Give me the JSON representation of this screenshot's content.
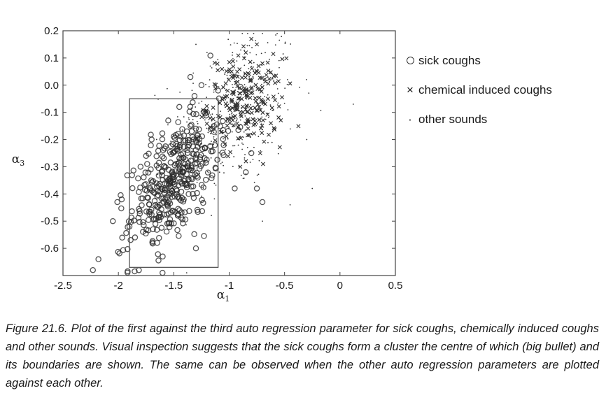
{
  "chart_data": {
    "type": "scatter",
    "xlabel": "α",
    "xlabel_sub": "1",
    "ylabel": "α",
    "ylabel_sub": "3",
    "xlim": [
      -2.5,
      0.5
    ],
    "ylim": [
      -0.7,
      0.2
    ],
    "x_ticks": [
      -2.5,
      -2,
      -1.5,
      -1,
      -0.5,
      0,
      0.5
    ],
    "x_tick_labels": [
      "-2.5",
      "-2",
      "-1.5",
      "-1",
      "-0.5",
      "0",
      "0.5"
    ],
    "y_ticks": [
      0.2,
      0.1,
      0.0,
      -0.1,
      -0.2,
      -0.3,
      -0.4,
      -0.5,
      -0.6
    ],
    "y_tick_labels": [
      "0.2",
      "0.1",
      "0.0",
      "-0.1",
      "-0.2",
      "-0.3",
      "-0.4",
      "-0.5",
      "-0.6"
    ],
    "grid": false,
    "legend_position": "right",
    "boundary_box": {
      "x0": -1.9,
      "x1": -1.1,
      "y0": -0.67,
      "y1": -0.05
    },
    "series": [
      {
        "name": "sick coughs",
        "marker": "circle",
        "approx_count": 420,
        "cluster": {
          "center": [
            -1.5,
            -0.35
          ],
          "spread": [
            0.2,
            0.1
          ]
        },
        "points": [
          [
            -2.23,
            -0.68
          ],
          [
            -2.18,
            -0.64
          ],
          [
            -2.05,
            -0.5
          ],
          [
            -1.97,
            -0.42
          ],
          [
            -1.9,
            -0.52
          ],
          [
            -1.85,
            -0.56
          ],
          [
            -1.8,
            -0.3
          ],
          [
            -1.75,
            -0.26
          ],
          [
            -1.7,
            -0.2
          ],
          [
            -1.65,
            -0.58
          ],
          [
            -1.6,
            -0.63
          ],
          [
            -1.55,
            -0.13
          ],
          [
            -1.45,
            -0.08
          ],
          [
            -1.35,
            0.03
          ],
          [
            -1.3,
            -0.6
          ],
          [
            -1.25,
            0.0
          ],
          [
            -1.2,
            -0.1
          ],
          [
            -1.1,
            -0.02
          ],
          [
            -1.05,
            -0.22
          ],
          [
            -0.95,
            -0.38
          ],
          [
            -0.85,
            -0.32
          ],
          [
            -0.75,
            -0.38
          ],
          [
            -0.7,
            -0.43
          ],
          [
            -0.8,
            -0.25
          ]
        ]
      },
      {
        "name": "chemical induced coughs",
        "marker": "x",
        "approx_count": 220,
        "cluster": {
          "center": [
            -0.85,
            -0.06
          ],
          "spread": [
            0.17,
            0.08
          ]
        },
        "points": [
          [
            -0.8,
            0.17
          ],
          [
            -0.75,
            0.15
          ],
          [
            -0.85,
            0.12
          ],
          [
            -0.7,
            0.08
          ],
          [
            -1.0,
            0.05
          ],
          [
            -0.9,
            -0.3
          ],
          [
            -0.72,
            -0.25
          ],
          [
            -0.65,
            -0.05
          ]
        ]
      },
      {
        "name": "other sounds",
        "marker": "dot",
        "approx_count": 320,
        "cluster": {
          "center": [
            -0.95,
            -0.1
          ],
          "spread": [
            0.28,
            0.15
          ]
        },
        "points": [
          [
            -1.3,
            0.15
          ],
          [
            -1.2,
            0.12
          ],
          [
            0.12,
            -0.07
          ],
          [
            -0.3,
            -0.2
          ],
          [
            -0.45,
            -0.44
          ],
          [
            -0.25,
            -0.38
          ],
          [
            -0.7,
            -0.5
          ],
          [
            -1.4,
            -0.3
          ]
        ]
      }
    ]
  },
  "legend": {
    "items": [
      {
        "symbol": "circle",
        "label": "sick coughs"
      },
      {
        "symbol": "×",
        "label": "chemical induced coughs"
      },
      {
        "symbol": "·",
        "label": "other sounds"
      }
    ]
  },
  "caption": "Figure 21.6. Plot of the first against the third auto regression parameter for sick coughs, chemically induced coughs and other sounds. Visual inspection suggests that the sick coughs form a cluster the centre of which (big bullet) and its boundaries are shown. The same can be observed when the other auto regression parameters are plotted against each other."
}
